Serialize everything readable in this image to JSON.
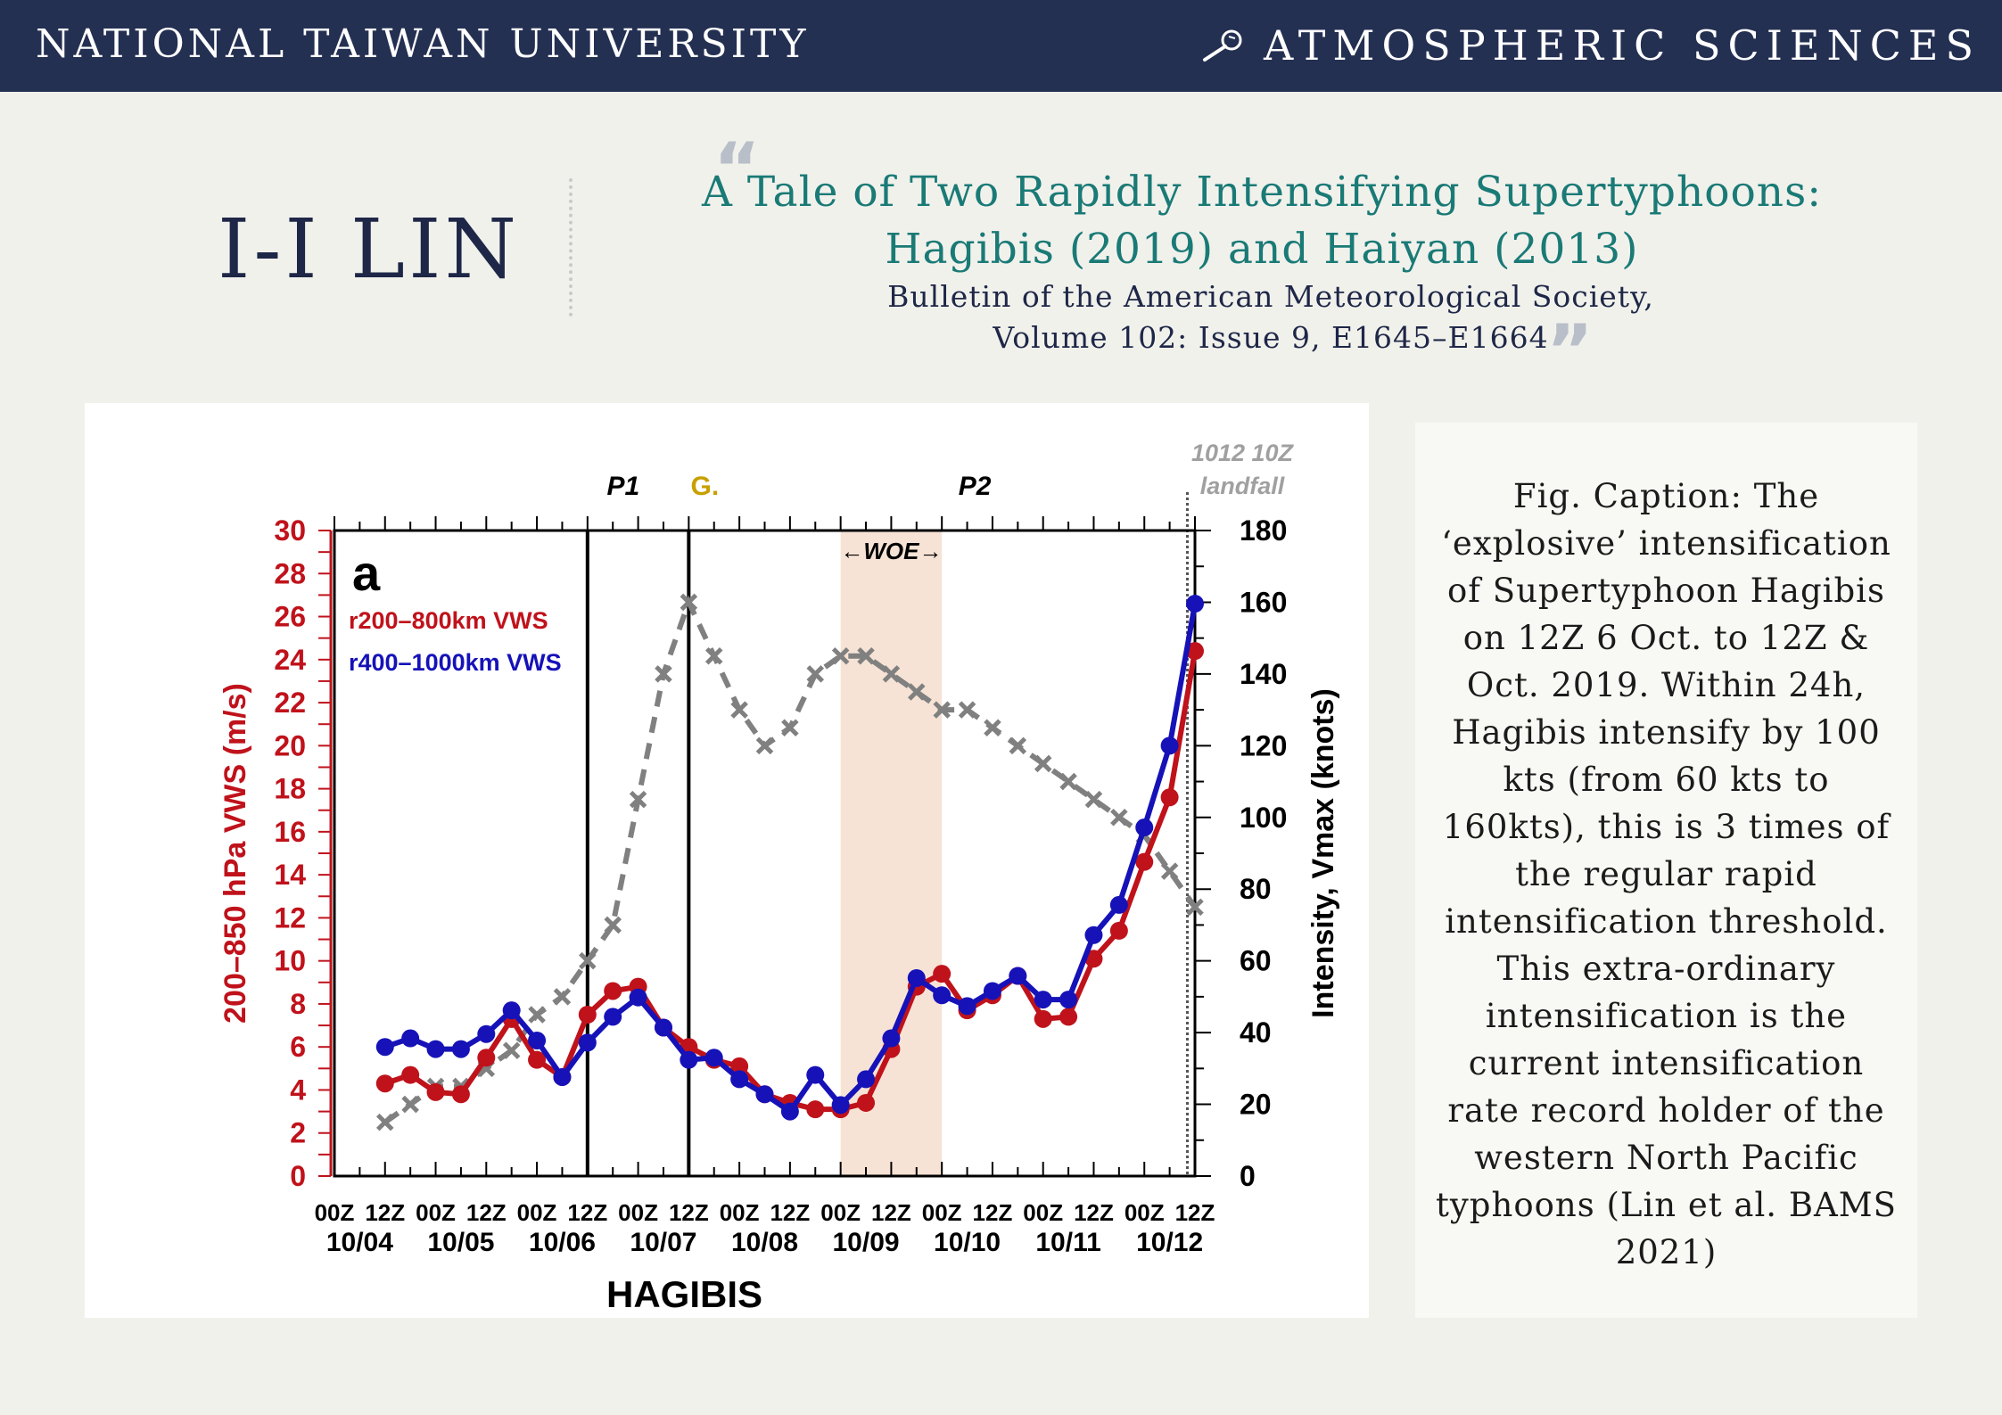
{
  "header": {
    "left": "NATIONAL TAIWAN UNIVERSITY",
    "right": "ATMOSPHERIC SCIENCES",
    "icon": "telescope-icon",
    "bar_color": "#243052"
  },
  "author": "I-I LIN",
  "paper": {
    "title_line1": "A Tale of Two Rapidly Intensifying Supertyphoons:",
    "title_line2": "Hagibis (2019) and Haiyan (2013)",
    "journal_line1": "Bulletin of the American Meteorological Society,",
    "journal_line2": "Volume 102: Issue 9, E1645–E1664",
    "quote_open": "“",
    "quote_close": "”"
  },
  "caption": "Fig. Caption: The ‘explosive’ intensification of Supertyphoon Hagibis on 12Z 6 Oct. to 12Z & Oct. 2019. Within 24h, Hagibis intensify by 100 kts (from 60 kts to 160kts), this is 3 times of the regular rapid intensification threshold. This extra-ordinary intensification is the current intensification rate record holder of the western North Pacific typhoons (Lin et al. BAMS 2021)",
  "chart_data": {
    "type": "line",
    "panel_label": "a",
    "xlabel": "HAGIBIS",
    "ylabel_left": "200–850 hPa VWS (m/s)",
    "ylabel_right": "Intensity, Vmax (knots)",
    "ylim_left": [
      0,
      30
    ],
    "ylim_right": [
      0,
      180
    ],
    "yticks_left": [
      0,
      2,
      4,
      6,
      8,
      10,
      12,
      14,
      16,
      18,
      20,
      22,
      24,
      26,
      28,
      30
    ],
    "yticks_right": [
      0,
      20,
      40,
      60,
      80,
      100,
      120,
      140,
      160,
      180
    ],
    "x_index_range": [
      0,
      34
    ],
    "tick_labels_time": [
      "00Z",
      "12Z",
      "00Z",
      "12Z",
      "00Z",
      "12Z",
      "00Z",
      "12Z",
      "00Z",
      "12Z",
      "00Z",
      "12Z",
      "00Z",
      "12Z",
      "00Z",
      "12Z",
      "00Z",
      "12Z"
    ],
    "tick_labels_date": [
      "10/04",
      "10/05",
      "10/06",
      "10/07",
      "10/08",
      "10/09",
      "10/10",
      "10/11",
      "10/12"
    ],
    "annotations": {
      "p1": "P1",
      "g": "G.",
      "p2": "P2",
      "woe": "←WOE→",
      "landfall_line1": "1012 10Z",
      "landfall_line2": "landfall"
    },
    "shaded_range_index": [
      20,
      24
    ],
    "vertical_lines_index": [
      10,
      14
    ],
    "landfall_index": 33.7,
    "series": [
      {
        "name": "r200–800km VWS",
        "axis": "left",
        "color": "#c0121b",
        "x": [
          2,
          3,
          4,
          5,
          6,
          7,
          8,
          9,
          10,
          11,
          12,
          13,
          14,
          15,
          16,
          17,
          18,
          19,
          20,
          21,
          22,
          23,
          24,
          25,
          26,
          27,
          28,
          29,
          30,
          31,
          32,
          33,
          34
        ],
        "values": [
          4.3,
          4.7,
          3.9,
          3.8,
          5.5,
          7.3,
          5.4,
          4.6,
          7.5,
          8.6,
          8.8,
          6.9,
          6.0,
          5.4,
          5.1,
          3.8,
          3.4,
          3.1,
          3.1,
          3.4,
          5.9,
          8.8,
          9.4,
          7.7,
          8.4,
          9.3,
          7.3,
          7.4,
          10.1,
          11.4,
          14.6,
          17.6,
          24.4
        ]
      },
      {
        "name": "r400–1000km VWS",
        "axis": "left",
        "color": "#1612b8",
        "x": [
          2,
          3,
          4,
          5,
          6,
          7,
          8,
          9,
          10,
          11,
          12,
          13,
          14,
          15,
          16,
          17,
          18,
          19,
          20,
          21,
          22,
          23,
          24,
          25,
          26,
          27,
          28,
          29,
          30,
          31,
          32,
          33,
          34
        ],
        "values": [
          6.0,
          6.4,
          5.9,
          5.9,
          6.6,
          7.7,
          6.3,
          4.6,
          6.2,
          7.4,
          8.3,
          6.9,
          5.4,
          5.5,
          4.5,
          3.8,
          3.0,
          4.7,
          3.3,
          4.5,
          6.4,
          9.2,
          8.4,
          7.9,
          8.6,
          9.3,
          8.2,
          8.2,
          11.2,
          12.6,
          16.2,
          20.0,
          26.6
        ]
      },
      {
        "name": "Intensity",
        "axis": "right",
        "color": "#808080",
        "x": [
          2,
          3,
          4,
          5,
          6,
          7,
          8,
          9,
          10,
          11,
          12,
          13,
          14,
          15,
          16,
          17,
          18,
          19,
          20,
          21,
          22,
          23,
          24,
          25,
          26,
          27,
          28,
          29,
          30,
          31,
          32,
          33,
          34
        ],
        "values": [
          15,
          20,
          25,
          25,
          30,
          35,
          45,
          50,
          60,
          70,
          105,
          140,
          160,
          145,
          130,
          120,
          125,
          140,
          145,
          145,
          140,
          135,
          130,
          130,
          125,
          120,
          115,
          110,
          105,
          100,
          95,
          85,
          75
        ]
      }
    ]
  }
}
